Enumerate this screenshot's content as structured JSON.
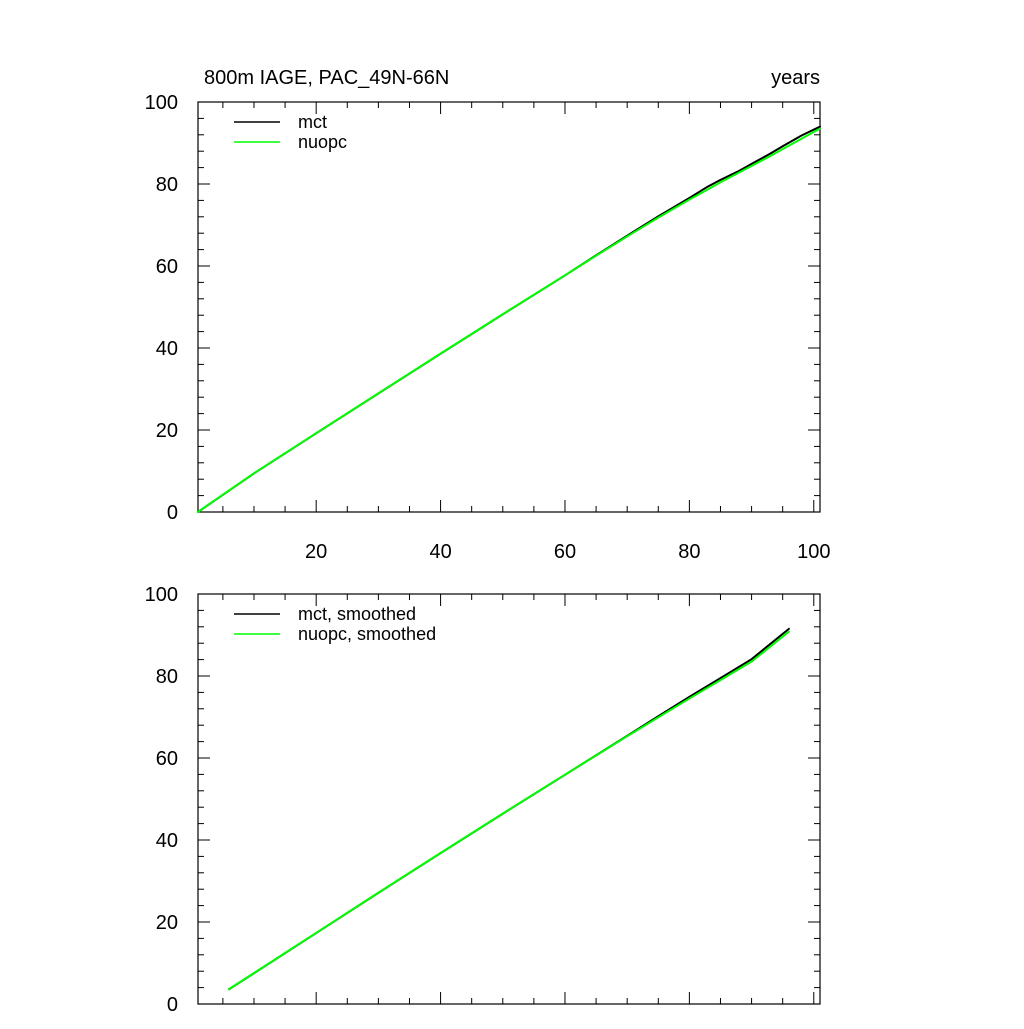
{
  "chart_data": [
    {
      "type": "line",
      "title": "800m IAGE, PAC_49N-66N",
      "title_right": "years",
      "xlabel": "",
      "ylabel": "",
      "xlim": [
        1,
        101
      ],
      "ylim": [
        0,
        100
      ],
      "xticks": [
        20,
        40,
        60,
        80,
        100
      ],
      "yticks": [
        0,
        20,
        40,
        60,
        80,
        100
      ],
      "show_x_tick_labels": true,
      "grid": false,
      "legend_position": "top-left",
      "series": [
        {
          "name": "mct",
          "color": "#000000",
          "x": [
            1,
            10,
            20,
            30,
            40,
            50,
            60,
            65,
            70,
            75,
            80,
            83,
            85,
            88,
            90,
            93,
            95,
            98,
            101
          ],
          "y": [
            0.0,
            9.4,
            19.2,
            28.9,
            38.6,
            48.2,
            57.7,
            62.6,
            67.4,
            72.1,
            76.6,
            79.4,
            81.0,
            83.2,
            84.9,
            87.4,
            89.2,
            91.8,
            94.0
          ]
        },
        {
          "name": "nuopc",
          "color": "#00ff00",
          "x": [
            1,
            10,
            20,
            30,
            40,
            50,
            60,
            65,
            70,
            75,
            80,
            83,
            85,
            88,
            90,
            93,
            95,
            98,
            101
          ],
          "y": [
            0.0,
            9.4,
            19.2,
            28.9,
            38.6,
            48.2,
            57.7,
            62.5,
            67.2,
            71.8,
            76.2,
            78.7,
            80.4,
            82.8,
            84.4,
            86.8,
            88.5,
            91.0,
            93.5
          ]
        }
      ]
    },
    {
      "type": "line",
      "title": "",
      "xlabel": "",
      "ylabel": "",
      "xlim": [
        1,
        101
      ],
      "ylim": [
        0,
        100
      ],
      "xticks": [
        20,
        40,
        60,
        80,
        100
      ],
      "yticks": [
        0,
        20,
        40,
        60,
        80,
        100
      ],
      "show_x_tick_labels": false,
      "grid": false,
      "legend_position": "top-left",
      "series": [
        {
          "name": "mct, smoothed",
          "color": "#000000",
          "x": [
            6,
            10,
            20,
            30,
            40,
            50,
            60,
            70,
            75,
            80,
            85,
            90,
            96
          ],
          "y": [
            3.6,
            7.5,
            17.3,
            27.1,
            36.8,
            46.4,
            55.9,
            65.4,
            70.2,
            74.9,
            79.5,
            84.1,
            91.5
          ]
        },
        {
          "name": "nuopc, smoothed",
          "color": "#00ff00",
          "x": [
            6,
            10,
            20,
            30,
            40,
            50,
            60,
            70,
            75,
            80,
            85,
            90,
            96
          ],
          "y": [
            3.6,
            7.5,
            17.3,
            27.1,
            36.8,
            46.4,
            55.9,
            65.3,
            69.9,
            74.5,
            79.0,
            83.5,
            90.8
          ]
        }
      ]
    }
  ]
}
